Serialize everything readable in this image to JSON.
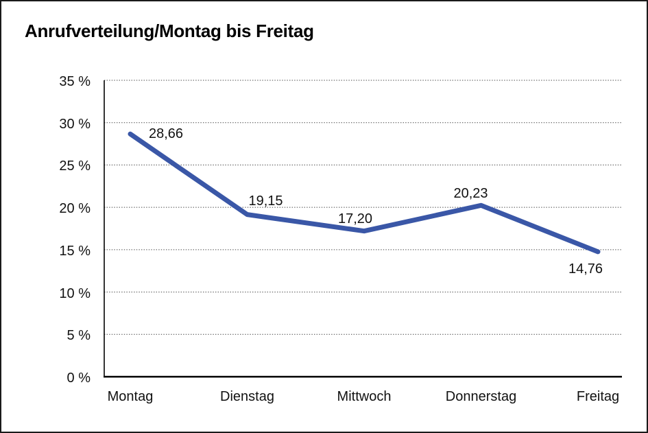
{
  "window": {
    "background": "#ffffff",
    "border_color": "#1a1a1a"
  },
  "chart_data": {
    "type": "line",
    "title": "Anrufverteilung/Montag bis Freitag",
    "categories": [
      "Montag",
      "Dienstag",
      "Mittwoch",
      "Donnerstag",
      "Freitag"
    ],
    "values": [
      28.66,
      19.15,
      17.2,
      20.23,
      14.76
    ],
    "data_labels": [
      "28,66",
      "19,15",
      "17,20",
      "20,23",
      "14,76"
    ],
    "xlabel": "",
    "ylabel": "",
    "ylim": [
      0,
      35
    ],
    "ytick_step": 5,
    "ytick_labels": [
      "0 %",
      "5 %",
      "10 %",
      "15 %",
      "20 %",
      "25 %",
      "30 %",
      "35 %"
    ],
    "grid": "horizontal-dotted",
    "legend": "none",
    "line_color": "#3A57A7",
    "axis_color": "#000000",
    "grid_color": "#444444",
    "text_color": "#111111"
  }
}
